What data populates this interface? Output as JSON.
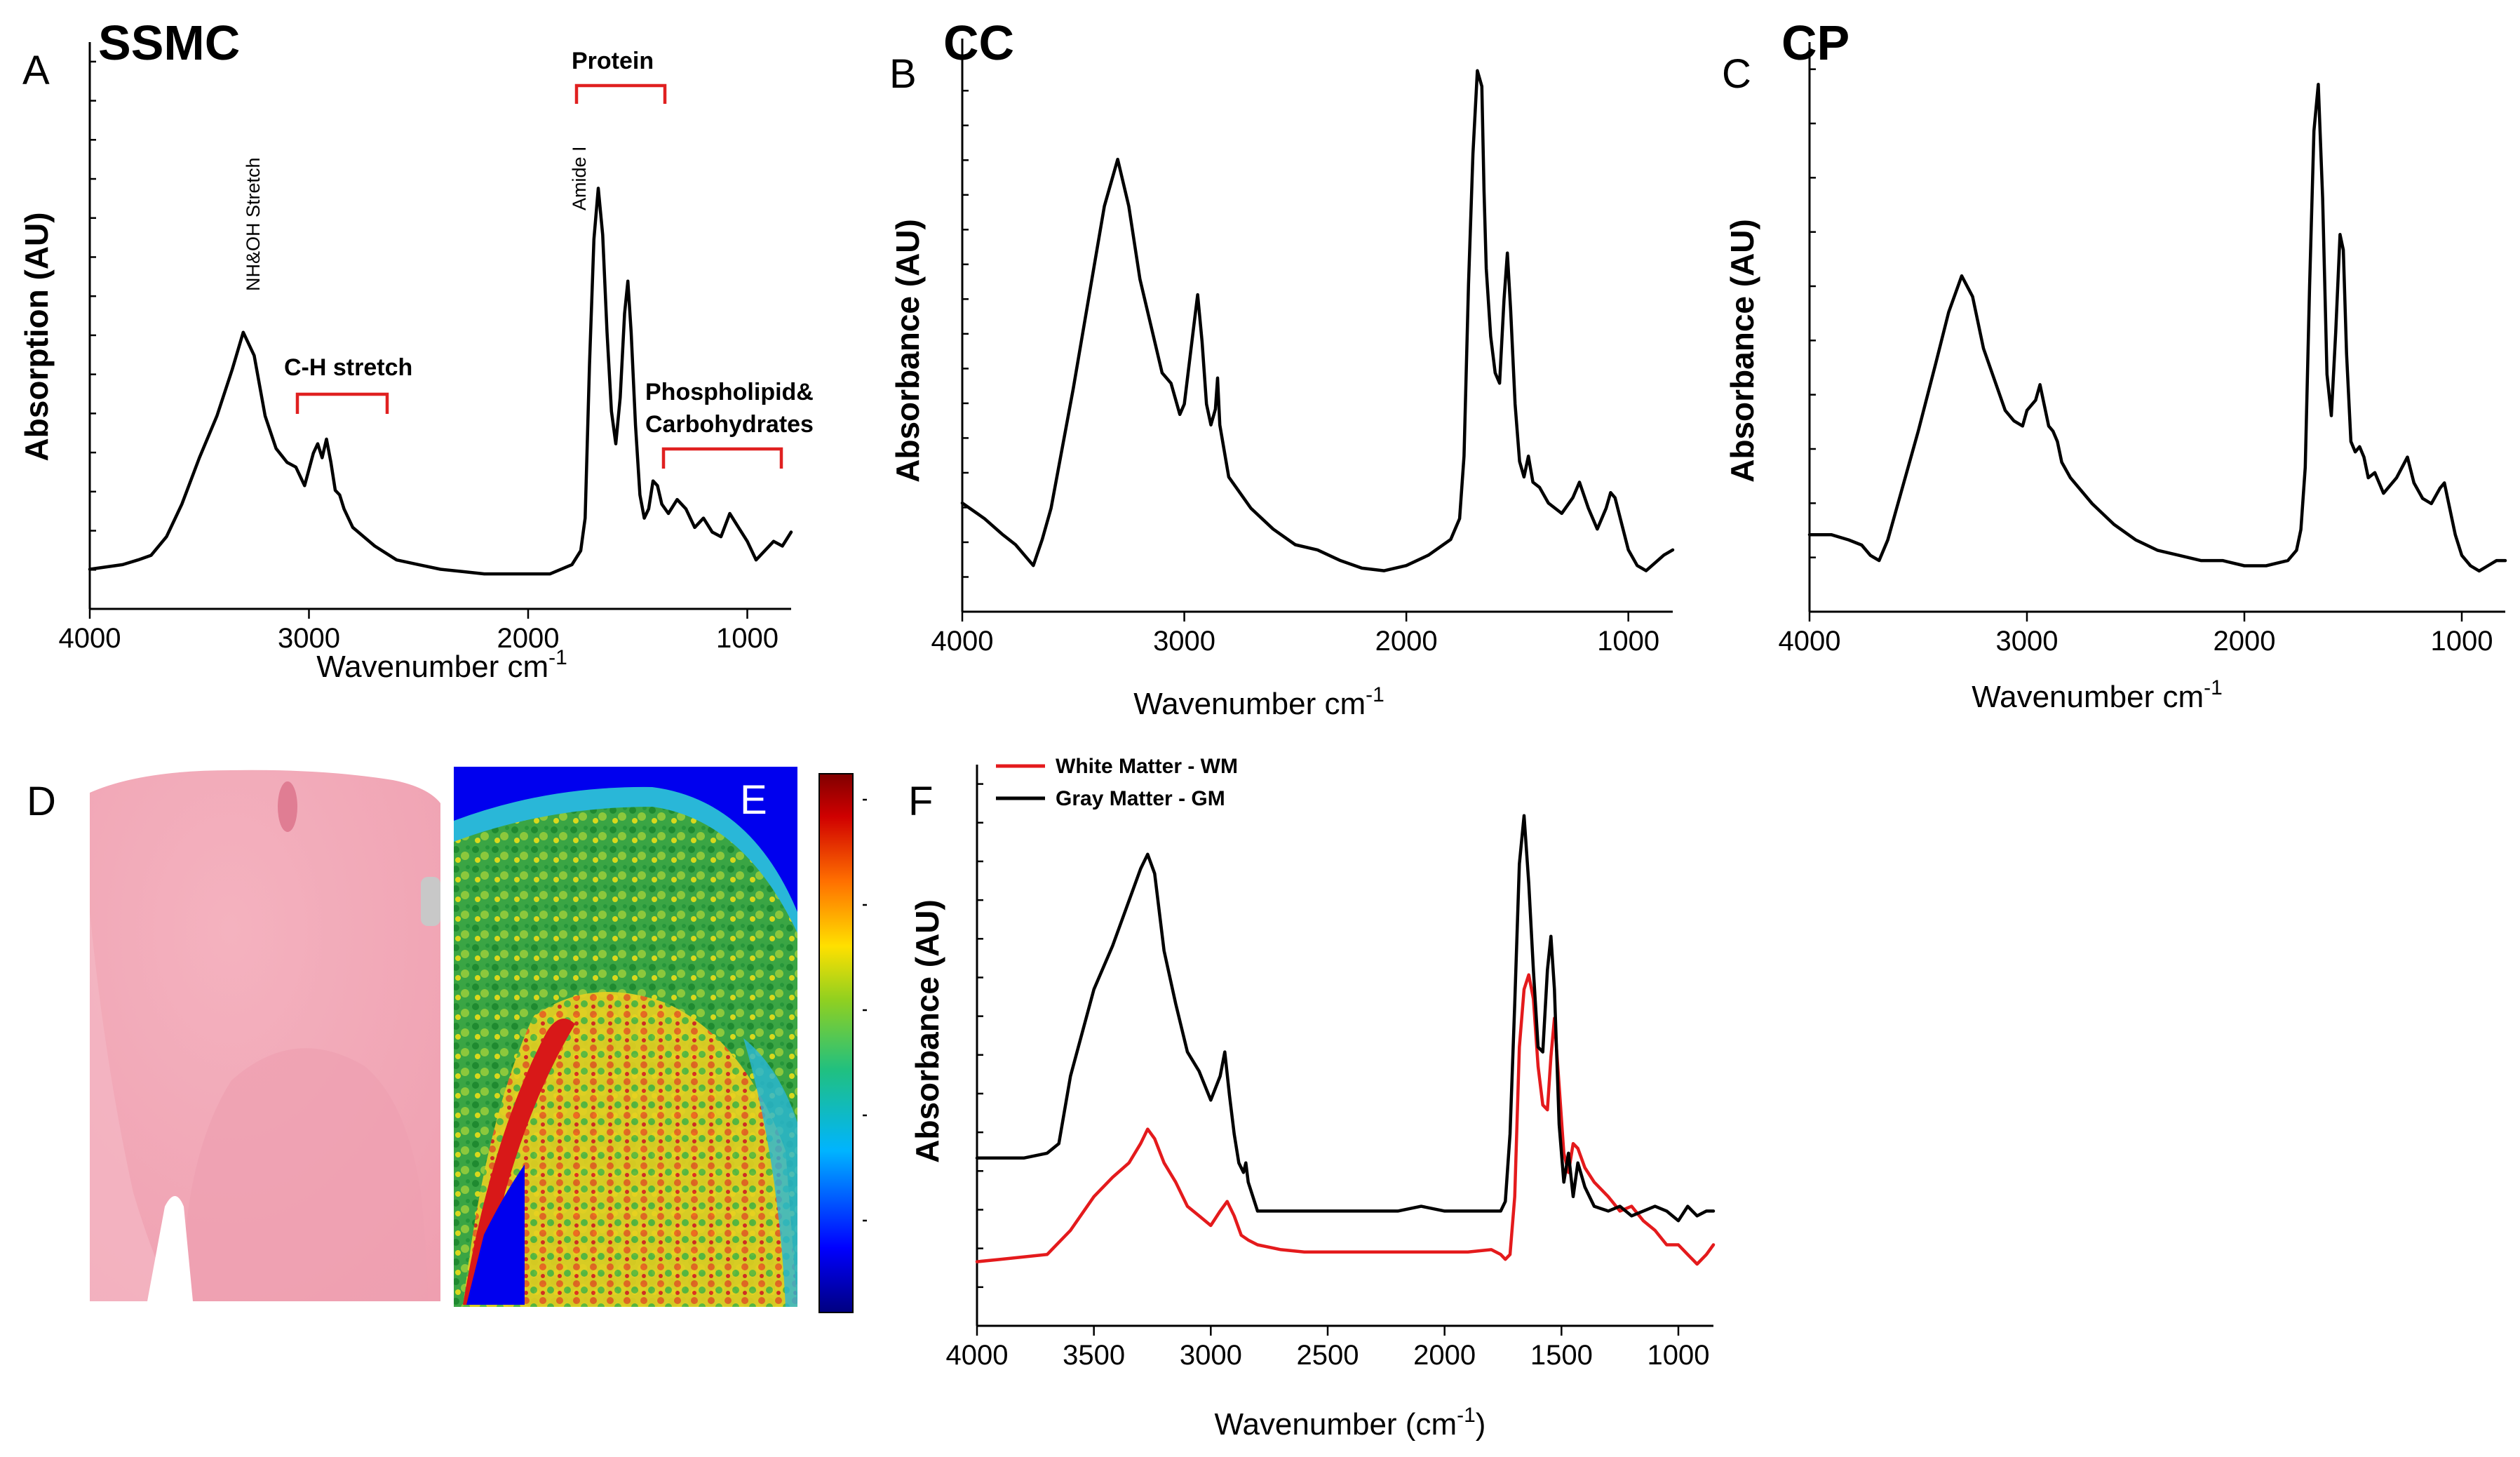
{
  "chart_data": [
    {
      "id": "A",
      "type": "line",
      "panel_label": "A",
      "title": "SSMC",
      "xlabel": "Wavenumber cm",
      "xlabel_sup": "-1",
      "ylabel": "Absorption (AU)",
      "xlim": [
        4000,
        800
      ],
      "ylim": [
        0,
        1.0
      ],
      "xticks": [
        4000,
        3000,
        2000,
        1000
      ],
      "xtick_labels": [
        "4000",
        "3000",
        "2000",
        "1000"
      ],
      "series": [
        {
          "name": "SSMC",
          "color": "#000000",
          "x": [
            4000,
            3850,
            3780,
            3720,
            3650,
            3580,
            3500,
            3420,
            3350,
            3300,
            3250,
            3200,
            3150,
            3100,
            3060,
            3020,
            2980,
            2960,
            2940,
            2920,
            2900,
            2880,
            2860,
            2840,
            2800,
            2700,
            2600,
            2500,
            2400,
            2300,
            2200,
            2100,
            2000,
            1900,
            1800,
            1760,
            1740,
            1720,
            1700,
            1680,
            1660,
            1640,
            1620,
            1600,
            1580,
            1560,
            1545,
            1530,
            1510,
            1490,
            1470,
            1450,
            1430,
            1410,
            1390,
            1360,
            1320,
            1280,
            1240,
            1200,
            1160,
            1120,
            1080,
            1040,
            1000,
            960,
            920,
            880,
            840,
            800
          ],
          "y": [
            0.01,
            0.02,
            0.03,
            0.04,
            0.08,
            0.15,
            0.25,
            0.34,
            0.44,
            0.52,
            0.47,
            0.34,
            0.27,
            0.24,
            0.23,
            0.19,
            0.26,
            0.28,
            0.25,
            0.29,
            0.24,
            0.18,
            0.17,
            0.14,
            0.1,
            0.06,
            0.03,
            0.02,
            0.01,
            0.005,
            0.0,
            0.0,
            0.0,
            0.0,
            0.02,
            0.05,
            0.12,
            0.45,
            0.72,
            0.83,
            0.73,
            0.52,
            0.35,
            0.28,
            0.38,
            0.56,
            0.63,
            0.52,
            0.32,
            0.17,
            0.12,
            0.14,
            0.2,
            0.19,
            0.15,
            0.13,
            0.16,
            0.14,
            0.1,
            0.12,
            0.09,
            0.08,
            0.13,
            0.1,
            0.07,
            0.03,
            0.05,
            0.07,
            0.06,
            0.09
          ]
        }
      ],
      "annotations": [
        {
          "text": "NH&OH Stretch",
          "x": 3290,
          "y": 0.56,
          "rotated": true
        },
        {
          "text": "Amide I",
          "x": 1780,
          "y": 0.62,
          "rotated": true
        },
        {
          "text": "C-H stretch",
          "x1": 3080,
          "x2": 2650,
          "y": 0.34
        },
        {
          "text": "Protein",
          "x1": 1790,
          "x2": 1410,
          "y": 0.86
        },
        {
          "line1": "Phospholipid&",
          "line2": "Carbohydrates",
          "x1": 1390,
          "x2": 860,
          "y": 0.23
        }
      ]
    },
    {
      "id": "B",
      "type": "line",
      "panel_label": "B",
      "title": "CC",
      "xlabel": "Wavenumber cm",
      "xlabel_sup": "-1",
      "ylabel": "Absorbance (AU)",
      "xlim": [
        4000,
        800
      ],
      "ylim": [
        0,
        1.0
      ],
      "xticks": [
        4000,
        3000,
        2000,
        1000
      ],
      "xtick_labels": [
        "4000",
        "3000",
        "2000",
        "1000"
      ],
      "series": [
        {
          "name": "CC",
          "color": "#000000",
          "x": [
            4000,
            3900,
            3820,
            3760,
            3720,
            3680,
            3640,
            3600,
            3500,
            3420,
            3360,
            3300,
            3250,
            3200,
            3150,
            3100,
            3060,
            3020,
            3000,
            2960,
            2940,
            2920,
            2900,
            2880,
            2860,
            2850,
            2840,
            2800,
            2700,
            2600,
            2500,
            2400,
            2300,
            2200,
            2100,
            2000,
            1900,
            1800,
            1760,
            1740,
            1720,
            1700,
            1680,
            1660,
            1650,
            1640,
            1620,
            1600,
            1580,
            1560,
            1545,
            1530,
            1510,
            1490,
            1470,
            1450,
            1430,
            1400,
            1360,
            1300,
            1250,
            1220,
            1180,
            1140,
            1100,
            1080,
            1060,
            1030,
            1000,
            960,
            920,
            880,
            840,
            800
          ],
          "y": [
            0.13,
            0.1,
            0.07,
            0.05,
            0.03,
            0.01,
            0.06,
            0.12,
            0.35,
            0.55,
            0.7,
            0.79,
            0.7,
            0.56,
            0.47,
            0.38,
            0.36,
            0.3,
            0.32,
            0.46,
            0.53,
            0.44,
            0.32,
            0.28,
            0.31,
            0.37,
            0.28,
            0.18,
            0.12,
            0.08,
            0.05,
            0.04,
            0.02,
            0.005,
            0.0,
            0.01,
            0.03,
            0.06,
            0.1,
            0.22,
            0.55,
            0.8,
            0.96,
            0.93,
            0.73,
            0.58,
            0.45,
            0.38,
            0.36,
            0.52,
            0.61,
            0.5,
            0.32,
            0.21,
            0.18,
            0.22,
            0.17,
            0.16,
            0.13,
            0.11,
            0.14,
            0.17,
            0.12,
            0.08,
            0.12,
            0.15,
            0.14,
            0.09,
            0.04,
            0.01,
            0.0,
            0.015,
            0.03,
            0.04
          ]
        }
      ],
      "annotations": []
    },
    {
      "id": "C",
      "type": "line",
      "panel_label": "C",
      "title": "CP",
      "xlabel": "Wavenumber cm",
      "xlabel_sup": "-1",
      "ylabel": "Absorbance (AU)",
      "xlim": [
        4000,
        800
      ],
      "ylim": [
        0,
        1.0
      ],
      "xticks": [
        4000,
        3000,
        2000,
        1000
      ],
      "xtick_labels": [
        "4000",
        "3000",
        "2000",
        "1000"
      ],
      "series": [
        {
          "name": "CP",
          "color": "#000000",
          "x": [
            4000,
            3900,
            3820,
            3760,
            3720,
            3680,
            3640,
            3600,
            3500,
            3420,
            3360,
            3300,
            3250,
            3200,
            3150,
            3100,
            3060,
            3020,
            3000,
            2960,
            2940,
            2920,
            2900,
            2880,
            2860,
            2840,
            2800,
            2700,
            2600,
            2500,
            2400,
            2300,
            2200,
            2100,
            2000,
            1900,
            1800,
            1760,
            1740,
            1720,
            1700,
            1680,
            1660,
            1640,
            1620,
            1600,
            1580,
            1560,
            1545,
            1530,
            1510,
            1490,
            1470,
            1450,
            1430,
            1400,
            1360,
            1300,
            1250,
            1220,
            1180,
            1140,
            1100,
            1080,
            1060,
            1030,
            1000,
            960,
            920,
            880,
            840,
            800
          ],
          "y": [
            0.07,
            0.07,
            0.06,
            0.05,
            0.03,
            0.02,
            0.06,
            0.12,
            0.27,
            0.4,
            0.5,
            0.57,
            0.53,
            0.43,
            0.37,
            0.31,
            0.29,
            0.28,
            0.31,
            0.33,
            0.36,
            0.32,
            0.28,
            0.27,
            0.25,
            0.21,
            0.18,
            0.13,
            0.09,
            0.06,
            0.04,
            0.03,
            0.02,
            0.02,
            0.01,
            0.01,
            0.02,
            0.04,
            0.08,
            0.2,
            0.55,
            0.85,
            0.94,
            0.72,
            0.38,
            0.3,
            0.46,
            0.65,
            0.62,
            0.42,
            0.25,
            0.23,
            0.24,
            0.22,
            0.18,
            0.19,
            0.15,
            0.18,
            0.22,
            0.17,
            0.14,
            0.13,
            0.16,
            0.17,
            0.13,
            0.07,
            0.03,
            0.01,
            0.0,
            0.01,
            0.02,
            0.02
          ]
        }
      ],
      "annotations": []
    },
    {
      "id": "F",
      "type": "line",
      "panel_label": "F",
      "title": "",
      "xlabel": "Wavenumber (cm",
      "xlabel_sup": "-1",
      "xlabel_end": ")",
      "ylabel": "Absorbance (AU)",
      "xlim": [
        4000,
        850
      ],
      "ylim": [
        0,
        1.0
      ],
      "xticks": [
        4000,
        3500,
        3000,
        2500,
        2000,
        1500,
        1000
      ],
      "xtick_labels": [
        "4000",
        "3500",
        "3000",
        "2500",
        "2000",
        "1500",
        "1000"
      ],
      "legend": "top-left",
      "series": [
        {
          "name": "White Matter - WM",
          "color": "#e41a1c",
          "x": [
            4000,
            3900,
            3800,
            3700,
            3600,
            3500,
            3420,
            3350,
            3300,
            3270,
            3240,
            3200,
            3150,
            3100,
            3050,
            3000,
            2960,
            2930,
            2900,
            2870,
            2840,
            2800,
            2700,
            2600,
            2500,
            2400,
            2300,
            2200,
            2100,
            2000,
            1900,
            1800,
            1760,
            1740,
            1720,
            1700,
            1680,
            1660,
            1640,
            1620,
            1600,
            1580,
            1560,
            1545,
            1530,
            1510,
            1490,
            1470,
            1450,
            1430,
            1400,
            1360,
            1300,
            1250,
            1200,
            1150,
            1100,
            1050,
            1000,
            960,
            920,
            880,
            850
          ],
          "y": [
            0.015,
            0.02,
            0.025,
            0.03,
            0.08,
            0.15,
            0.19,
            0.22,
            0.26,
            0.29,
            0.27,
            0.22,
            0.18,
            0.13,
            0.11,
            0.09,
            0.12,
            0.14,
            0.11,
            0.07,
            0.06,
            0.05,
            0.04,
            0.035,
            0.035,
            0.035,
            0.035,
            0.035,
            0.035,
            0.035,
            0.035,
            0.04,
            0.03,
            0.02,
            0.03,
            0.15,
            0.46,
            0.58,
            0.61,
            0.56,
            0.42,
            0.34,
            0.33,
            0.44,
            0.52,
            0.38,
            0.24,
            0.2,
            0.26,
            0.25,
            0.21,
            0.18,
            0.15,
            0.12,
            0.13,
            0.1,
            0.08,
            0.05,
            0.05,
            0.03,
            0.01,
            0.03,
            0.05
          ]
        },
        {
          "name": "Gray Matter - GM",
          "color": "#000000",
          "x": [
            4000,
            3900,
            3800,
            3700,
            3650,
            3600,
            3500,
            3420,
            3360,
            3300,
            3270,
            3240,
            3200,
            3150,
            3100,
            3050,
            3000,
            2960,
            2940,
            2920,
            2900,
            2880,
            2860,
            2850,
            2840,
            2800,
            2700,
            2600,
            2500,
            2400,
            2300,
            2200,
            2100,
            2000,
            1900,
            1800,
            1760,
            1740,
            1720,
            1700,
            1680,
            1660,
            1640,
            1620,
            1600,
            1580,
            1560,
            1545,
            1530,
            1510,
            1490,
            1470,
            1450,
            1430,
            1400,
            1360,
            1300,
            1250,
            1200,
            1150,
            1100,
            1050,
            1000,
            960,
            920,
            880,
            850
          ],
          "y": [
            0.23,
            0.23,
            0.23,
            0.24,
            0.26,
            0.4,
            0.58,
            0.67,
            0.75,
            0.83,
            0.86,
            0.82,
            0.66,
            0.55,
            0.45,
            0.41,
            0.35,
            0.4,
            0.45,
            0.36,
            0.28,
            0.22,
            0.2,
            0.22,
            0.18,
            0.12,
            0.12,
            0.12,
            0.12,
            0.12,
            0.12,
            0.12,
            0.13,
            0.12,
            0.12,
            0.12,
            0.12,
            0.14,
            0.28,
            0.55,
            0.84,
            0.94,
            0.8,
            0.62,
            0.46,
            0.45,
            0.62,
            0.69,
            0.58,
            0.3,
            0.18,
            0.24,
            0.15,
            0.22,
            0.17,
            0.13,
            0.12,
            0.13,
            0.11,
            0.12,
            0.13,
            0.12,
            0.1,
            0.13,
            0.11,
            0.12,
            0.12
          ]
        }
      ],
      "annotations": []
    }
  ],
  "images": {
    "D": {
      "panel_label": "D",
      "description_color": "#f2a9b6"
    },
    "E": {
      "panel_label": "E",
      "colormap": [
        "#000080",
        "#0000ff",
        "#00c0ff",
        "#00c060",
        "#c8e000",
        "#ffd000",
        "#ff6000",
        "#c00000",
        "#800000"
      ]
    }
  }
}
